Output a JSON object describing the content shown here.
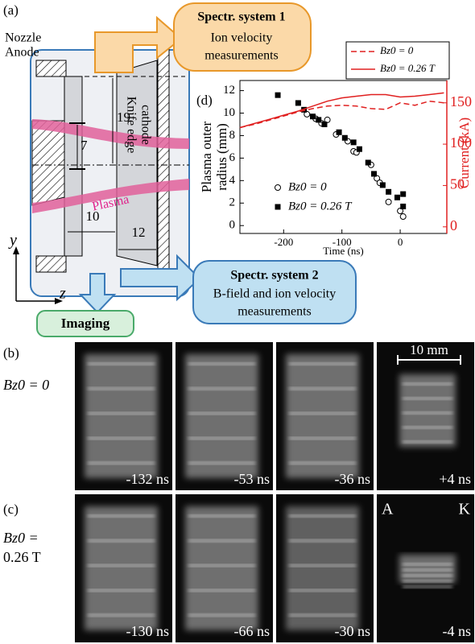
{
  "panel_a": {
    "label": "(a)",
    "nozzle": "Nozzle",
    "anode": "Anode",
    "cathode": [
      "Knife edge",
      "cathode"
    ],
    "dims": [
      "19",
      "7",
      "10",
      "12"
    ],
    "plasma": "Plasma",
    "y_axis": "y",
    "z_axis": "z",
    "spectr1": {
      "title": "Spectr. system 1",
      "lines": [
        "Ion velocity",
        "measurements"
      ]
    },
    "spectr2": {
      "title": "Spectr. system 2",
      "lines": [
        "B-field and ion velocity",
        "measurements"
      ]
    },
    "imaging": "Imaging"
  },
  "chart_data": {
    "type": "scatter",
    "panel_label": "(d)",
    "xlabel": "Time (ns)",
    "ylabel": [
      "Plasma outer",
      "radius (mm)"
    ],
    "y2label": "Current (kA)",
    "xlim": [
      -275,
      80
    ],
    "xticks": [
      -200,
      -100,
      0
    ],
    "ylim": [
      -0.7,
      12.9
    ],
    "yticks": [
      0,
      2,
      4,
      6,
      8,
      10,
      12
    ],
    "y2lim": [
      -8,
      177
    ],
    "y2ticks": [
      0,
      50,
      100,
      150
    ],
    "y2color": "#e02020",
    "series": [
      {
        "name": "Bz0 = 0",
        "kind": "scatter",
        "marker": "circle",
        "color": "#000000",
        "x": [
          -160,
          -145,
          -135,
          -125,
          -110,
          -90,
          -80,
          -75,
          -50,
          -40,
          -35,
          -20,
          0,
          5
        ],
        "values": [
          9.9,
          9.5,
          9.1,
          9.4,
          8.1,
          7.5,
          6.6,
          6.5,
          5.4,
          4.2,
          3.8,
          2.1,
          1.3,
          0.8
        ]
      },
      {
        "name": "Bz0 = 0.26 T",
        "kind": "scatter",
        "marker": "square",
        "color": "#000000",
        "x": [
          -210,
          -175,
          -165,
          -150,
          -140,
          -130,
          -105,
          -95,
          -80,
          -70,
          -55,
          -45,
          -30,
          -20,
          -5,
          5,
          5
        ],
        "values": [
          11.6,
          10.9,
          10.3,
          9.7,
          9.4,
          9.0,
          8.3,
          7.8,
          7.4,
          6.8,
          5.6,
          4.6,
          3.6,
          3.0,
          2.5,
          2.8,
          1.7
        ]
      },
      {
        "name": "Bz0 = 0",
        "kind": "line",
        "dash": true,
        "axis": "y2",
        "color": "#e02020",
        "x": [
          -275,
          -250,
          -225,
          -200,
          -175,
          -150,
          -125,
          -100,
          -75,
          -50,
          -25,
          0,
          25,
          50,
          75
        ],
        "values": [
          120,
          124,
          129,
          134,
          139,
          143,
          146,
          147,
          146,
          143,
          142,
          150,
          147,
          152,
          150
        ]
      },
      {
        "name": "Bz0 = 0.26 T",
        "kind": "line",
        "dash": false,
        "axis": "y2",
        "color": "#e02020",
        "x": [
          -275,
          -250,
          -225,
          -200,
          -175,
          -150,
          -125,
          -100,
          -75,
          -50,
          -25,
          0,
          25,
          50,
          75
        ],
        "values": [
          120,
          125,
          130,
          135,
          140,
          146,
          152,
          156,
          158,
          160,
          160,
          157,
          158,
          160,
          162
        ]
      }
    ]
  },
  "panel_b": {
    "label": "(b)",
    "condition": [
      "Bz0 = 0"
    ],
    "frames": [
      "-132 ns",
      "-53 ns",
      "-36 ns",
      "+4 ns"
    ],
    "scale_bar": "10 mm"
  },
  "panel_c": {
    "label": "(c)",
    "condition": [
      "Bz0 =",
      "0.26 T"
    ],
    "frames": [
      "-130 ns",
      "-66 ns",
      "-30 ns",
      "-4 ns"
    ],
    "anode_mark": "A",
    "cathode_mark": "K"
  }
}
